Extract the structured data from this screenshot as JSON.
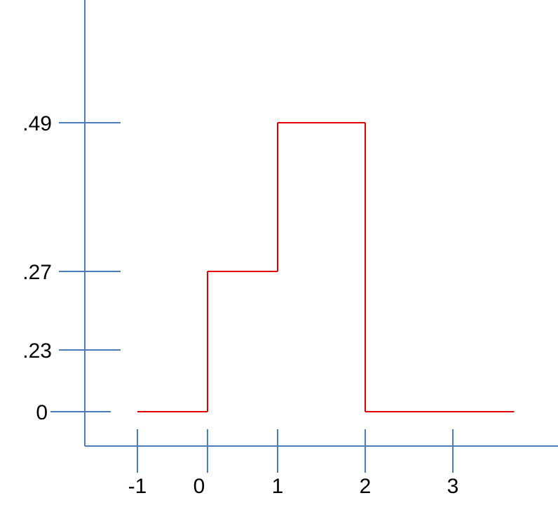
{
  "chart_data": {
    "type": "line",
    "style": "step",
    "title": "",
    "xlabel": "",
    "ylabel": "",
    "x_ticks": [
      {
        "value": -1,
        "label": "-1"
      },
      {
        "value": 0,
        "label": "0"
      },
      {
        "value": 1,
        "label": "1"
      },
      {
        "value": 2,
        "label": "2"
      },
      {
        "value": 3,
        "label": "3"
      }
    ],
    "y_ticks": [
      {
        "value": 0,
        "label": "0"
      },
      {
        "value": 0.23,
        "label": ".23"
      },
      {
        "value": 0.27,
        "label": ".27"
      },
      {
        "value": 0.49,
        "label": ".49"
      }
    ],
    "series": [
      {
        "color": "#e00000",
        "steps": [
          {
            "x_start": -1,
            "x_end": 0,
            "y": 0
          },
          {
            "x_start": 0,
            "x_end": 1,
            "y": 0.27
          },
          {
            "x_start": 1,
            "x_end": 2,
            "y": 0.49
          },
          {
            "x_start": 2,
            "x_end": 3.7,
            "y": 0
          }
        ]
      }
    ],
    "axis_color": "#4a7ebb",
    "grid": false,
    "legend": "none"
  }
}
